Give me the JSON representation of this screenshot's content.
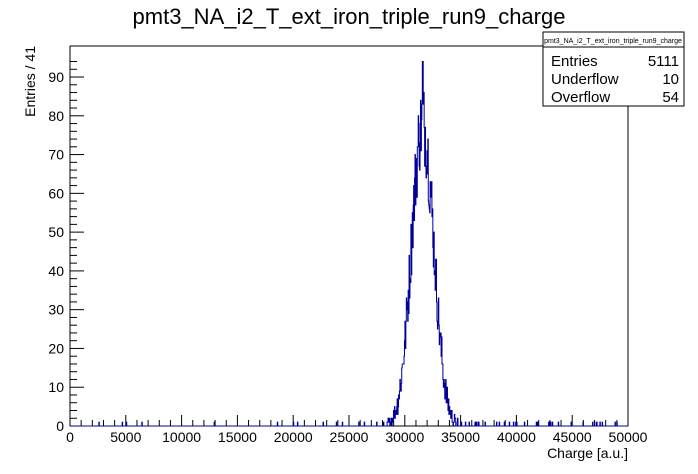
{
  "chart_data": {
    "type": "histogram",
    "title": "pmt3_NA_i2_T_ext_iron_triple_run9_charge",
    "xlabel": "Charge [a.u.]",
    "ylabel": "Entries / 41",
    "xlim": [
      0,
      50000
    ],
    "ylim": [
      0,
      98
    ],
    "x_ticks": [
      "0",
      "5000",
      "10000",
      "15000",
      "20000",
      "25000",
      "30000",
      "35000",
      "40000",
      "45000",
      "50000"
    ],
    "y_ticks": [
      "0",
      "10",
      "20",
      "30",
      "40",
      "50",
      "60",
      "70",
      "80",
      "90"
    ],
    "line_color": "#000099",
    "bin_width": 41,
    "peak": {
      "center": 31600,
      "height": 94,
      "sigma": 1000
    },
    "stats": {
      "title": "pmt3_NA_i2_T_ext_iron_triple_run9_charge",
      "rows": [
        {
          "label": "Entries",
          "value": "5111"
        },
        {
          "label": "Underflow",
          "value": "10"
        },
        {
          "label": "Overflow",
          "value": "54"
        }
      ]
    }
  }
}
